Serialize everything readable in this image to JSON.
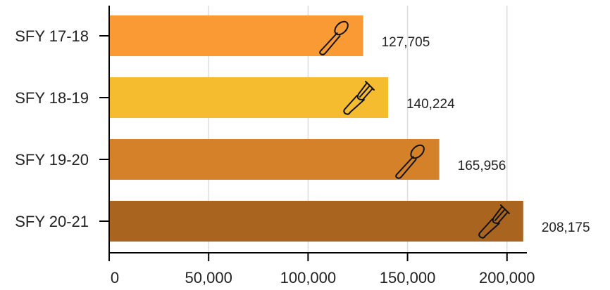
{
  "chart_data": {
    "type": "bar",
    "orientation": "horizontal",
    "title": "",
    "xlabel": "",
    "ylabel": "",
    "categories": [
      "SFY 17-18",
      "SFY 18-19",
      "SFY 19-20",
      "SFY 20-21"
    ],
    "values": [
      127705,
      140224,
      165956,
      208175
    ],
    "data_labels": [
      "127,705",
      "140,224",
      "165,956",
      "208,175"
    ],
    "xlim": [
      0,
      210000
    ],
    "x_ticks": [
      0,
      50000,
      100000,
      150000,
      200000
    ],
    "x_tick_labels": [
      "0",
      "50,000",
      "100,000",
      "150,000",
      "200,000"
    ],
    "grid": "vertical",
    "legend": "none",
    "bar_colors": [
      "#FA9A35",
      "#F6BC2F",
      "#D4812A",
      "#A96520"
    ],
    "bar_icons": [
      "spoon-icon",
      "fork-icon",
      "spoon-icon",
      "fork-icon"
    ],
    "grid_color": "#dddddd",
    "axis_color": "#000000"
  }
}
